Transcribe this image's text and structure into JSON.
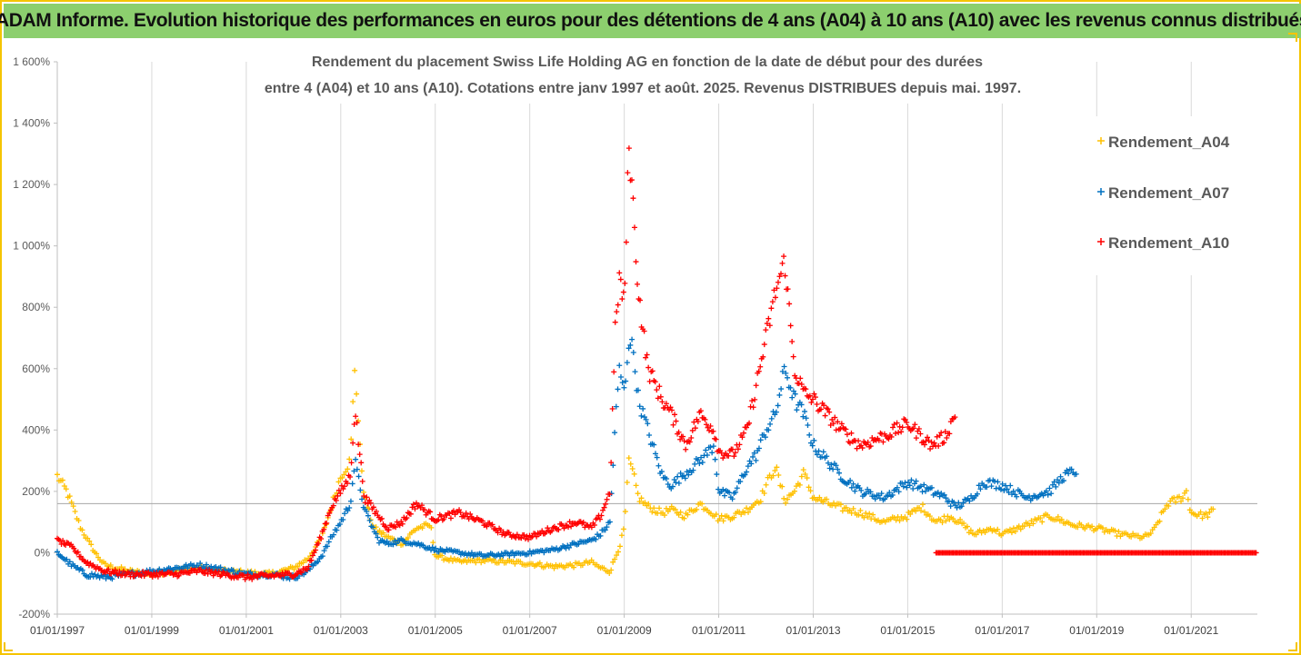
{
  "page": {
    "banner_title": "ADAM Informe. Evolution historique des performances en euros pour des détentions de 4 ans (A04) à 10 ans (A10) avec les revenus connus distribués"
  },
  "chart_data": {
    "type": "scatter",
    "title_line1": "Rendement du placement Swiss Life Holding AG en fonction de la date de début pour des durées",
    "title_line2": "entre 4 (A04) et 10 ans (A10). Cotations entre janv 1997 et août. 2025. Revenus DISTRIBUES depuis mai. 1997.",
    "xlabel": "",
    "ylabel": "",
    "x_unit": "date (year)",
    "xlim": [
      1997.0,
      2022.4
    ],
    "ylim": [
      -200,
      1600
    ],
    "y_ticks": [
      -200,
      0,
      200,
      400,
      600,
      800,
      1000,
      1200,
      1400,
      1600
    ],
    "y_tick_labels": [
      "-200%",
      "0%",
      "200%",
      "400%",
      "600%",
      "800%",
      "1 000%",
      "1 200%",
      "1 400%",
      "1 600%"
    ],
    "x_ticks": [
      1997,
      1999,
      2001,
      2003,
      2005,
      2007,
      2009,
      2011,
      2013,
      2015,
      2017,
      2019,
      2021
    ],
    "x_tick_labels": [
      "01/01/1997",
      "01/01/1999",
      "01/01/2001",
      "01/01/2003",
      "01/01/2005",
      "01/01/2007",
      "01/01/2009",
      "01/01/2011",
      "01/01/2013",
      "01/01/2015",
      "01/01/2017",
      "01/01/2019",
      "01/01/2021"
    ],
    "vertical_grid": true,
    "horizontal_grid": false,
    "reference_line_y": 160,
    "legend_position": "right",
    "marker": "+",
    "series": [
      {
        "name": "Rendement_A04",
        "color": "#FFC000",
        "x": [
          1997.0,
          1997.2,
          1997.5,
          1997.8,
          1998.0,
          1998.5,
          1999.0,
          1999.5,
          2000.0,
          2000.5,
          2001.0,
          2001.5,
          2002.0,
          2002.3,
          2002.6,
          2002.8,
          2003.0,
          2003.2,
          2003.3,
          2003.4,
          2003.5,
          2003.7,
          2004.0,
          2004.3,
          2004.6,
          2004.9,
          2005.0,
          2005.5,
          2006.0,
          2006.5,
          2007.0,
          2007.5,
          2008.0,
          2008.3,
          2008.5,
          2008.7,
          2008.8,
          2008.9,
          2009.0,
          2009.1,
          2009.2,
          2009.3,
          2009.5,
          2009.8,
          2010.0,
          2010.3,
          2010.6,
          2010.8,
          2011.0,
          2011.3,
          2011.6,
          2011.9,
          2012.0,
          2012.2,
          2012.4,
          2012.6,
          2012.8,
          2013.0,
          2013.5,
          2014.0,
          2014.5,
          2015.0,
          2015.3,
          2015.6,
          2015.9,
          2016.1,
          2016.4,
          2016.8,
          2017.0,
          2017.5,
          2018.0,
          2018.5,
          2019.0,
          2019.5,
          2020.0,
          2020.2,
          2020.5,
          2020.8,
          2020.9,
          2021.0,
          2021.3,
          2021.5
        ],
        "y": [
          250,
          200,
          80,
          0,
          -40,
          -60,
          -70,
          -55,
          -50,
          -60,
          -65,
          -70,
          -50,
          -20,
          50,
          150,
          250,
          300,
          620,
          350,
          180,
          80,
          50,
          30,
          80,
          90,
          -10,
          -30,
          -25,
          -30,
          -35,
          -45,
          -40,
          -30,
          -50,
          -60,
          -20,
          20,
          80,
          300,
          250,
          180,
          150,
          130,
          140,
          120,
          160,
          140,
          110,
          120,
          140,
          180,
          220,
          280,
          170,
          200,
          260,
          180,
          150,
          130,
          100,
          120,
          150,
          100,
          120,
          100,
          60,
          80,
          60,
          90,
          120,
          90,
          80,
          60,
          50,
          70,
          160,
          180,
          200,
          130,
          120,
          140
        ]
      },
      {
        "name": "Rendement_A07",
        "color": "#0070C0",
        "x": [
          1997.0,
          1997.3,
          1997.6,
          1998.0,
          1998.5,
          1999.0,
          1999.5,
          2000.0,
          2000.5,
          2001.0,
          2001.5,
          2002.0,
          2002.3,
          2002.6,
          2002.8,
          2003.0,
          2003.2,
          2003.3,
          2003.5,
          2003.8,
          2004.0,
          2004.3,
          2004.6,
          2005.0,
          2005.5,
          2006.0,
          2006.5,
          2007.0,
          2007.5,
          2008.0,
          2008.3,
          2008.5,
          2008.7,
          2008.8,
          2008.9,
          2009.0,
          2009.1,
          2009.2,
          2009.3,
          2009.5,
          2009.8,
          2010.0,
          2010.3,
          2010.6,
          2010.9,
          2011.0,
          2011.3,
          2011.6,
          2011.8,
          2012.0,
          2012.2,
          2012.4,
          2012.6,
          2012.8,
          2013.0,
          2013.3,
          2013.6,
          2014.0,
          2014.5,
          2015.0,
          2015.5,
          2015.8,
          2016.0,
          2016.3,
          2016.6,
          2017.0,
          2017.5,
          2018.0,
          2018.3,
          2018.6
        ],
        "y": [
          0,
          -40,
          -70,
          -80,
          -70,
          -60,
          -50,
          -40,
          -55,
          -70,
          -70,
          -80,
          -60,
          -10,
          50,
          100,
          160,
          300,
          140,
          40,
          30,
          40,
          30,
          10,
          0,
          -10,
          -5,
          0,
          10,
          30,
          40,
          60,
          100,
          400,
          600,
          520,
          700,
          650,
          500,
          400,
          250,
          220,
          260,
          300,
          350,
          200,
          180,
          280,
          320,
          400,
          450,
          600,
          500,
          450,
          350,
          300,
          250,
          200,
          180,
          230,
          200,
          180,
          150,
          170,
          230,
          220,
          180,
          200,
          250,
          270
        ]
      },
      {
        "name": "Rendement_A10",
        "color": "#FF0000",
        "x": [
          1997.0,
          1997.3,
          1997.6,
          1998.0,
          1998.5,
          1999.0,
          1999.5,
          2000.0,
          2000.5,
          2001.0,
          2001.5,
          2002.0,
          2002.3,
          2002.6,
          2002.8,
          2003.0,
          2003.2,
          2003.3,
          2003.5,
          2003.8,
          2004.0,
          2004.3,
          2004.6,
          2005.0,
          2005.5,
          2006.0,
          2006.5,
          2007.0,
          2007.5,
          2008.0,
          2008.3,
          2008.5,
          2008.7,
          2008.8,
          2008.9,
          2009.0,
          2009.1,
          2009.2,
          2009.3,
          2009.5,
          2009.8,
          2010.0,
          2010.3,
          2010.6,
          2010.9,
          2011.0,
          2011.3,
          2011.6,
          2011.8,
          2012.0,
          2012.2,
          2012.4,
          2012.6,
          2012.8,
          2013.0,
          2013.3,
          2013.6,
          2014.0,
          2014.5,
          2015.0,
          2015.5,
          2015.8,
          2016.0
        ],
        "y": [
          40,
          20,
          -30,
          -60,
          -70,
          -70,
          -70,
          -60,
          -70,
          -80,
          -75,
          -70,
          -50,
          60,
          150,
          200,
          250,
          470,
          180,
          120,
          80,
          100,
          160,
          110,
          130,
          100,
          60,
          50,
          80,
          100,
          80,
          120,
          200,
          700,
          900,
          800,
          1340,
          1100,
          850,
          600,
          500,
          450,
          350,
          450,
          400,
          330,
          320,
          400,
          550,
          700,
          850,
          950,
          600,
          520,
          500,
          450,
          400,
          350,
          380,
          420,
          350,
          380,
          450
        ]
      },
      {
        "name": "Rendement_A10",
        "color": "#FF0000",
        "x_range": [
          2015.6,
          2022.4
        ],
        "y_constant": 0
      }
    ]
  }
}
